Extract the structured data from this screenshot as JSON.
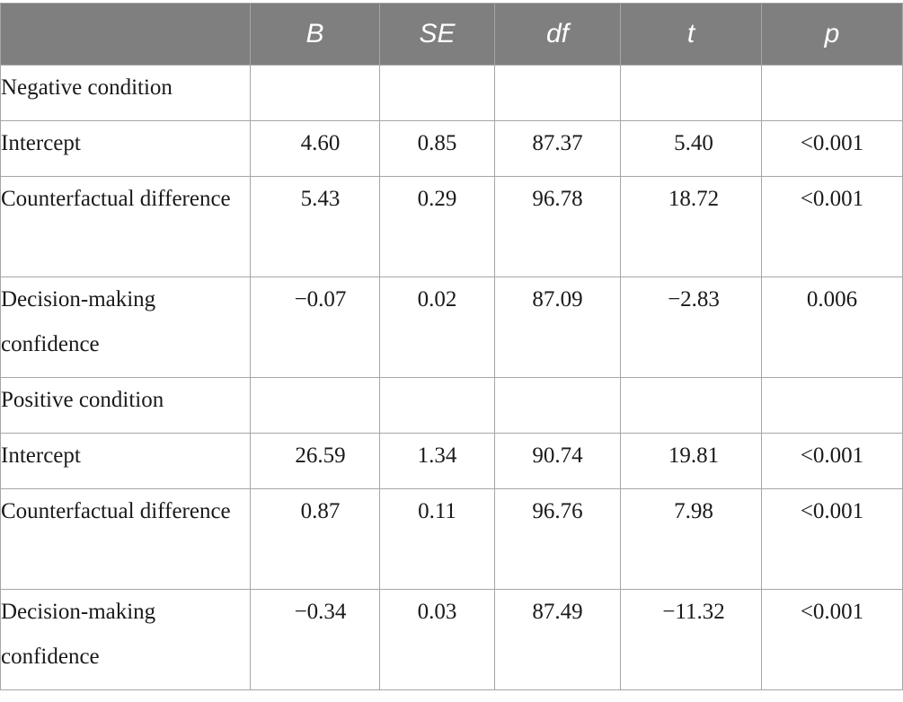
{
  "table": {
    "headers": [
      "",
      "B",
      "SE",
      "df",
      "t",
      "p"
    ],
    "sections": [
      {
        "label": "Negative condition",
        "rows": [
          {
            "label": "Intercept",
            "B": "4.60",
            "SE": "0.85",
            "df": "87.37",
            "t": "5.40",
            "p": "<0.001"
          },
          {
            "label": "Counterfactual difference",
            "B": "5.43",
            "SE": "0.29",
            "df": "96.78",
            "t": "18.72",
            "p": "<0.001"
          },
          {
            "label": "Decision-making confidence",
            "B": "−0.07",
            "SE": "0.02",
            "df": "87.09",
            "t": "−2.83",
            "p": "0.006"
          }
        ]
      },
      {
        "label": "Positive condition",
        "rows": [
          {
            "label": "Intercept",
            "B": "26.59",
            "SE": "1.34",
            "df": "90.74",
            "t": "19.81",
            "p": "<0.001"
          },
          {
            "label": "Counterfactual difference",
            "B": "0.87",
            "SE": "0.11",
            "df": "96.76",
            "t": "7.98",
            "p": "<0.001"
          },
          {
            "label": "Decision-making confidence",
            "B": "−0.34",
            "SE": "0.03",
            "df": "87.49",
            "t": "−11.32",
            "p": "<0.001"
          }
        ]
      }
    ]
  },
  "colors": {
    "header_background": "#7f7f7f",
    "header_text": "#ffffff",
    "grid_lines": "#a6a6a6",
    "body_text": "#1a1a1a"
  }
}
